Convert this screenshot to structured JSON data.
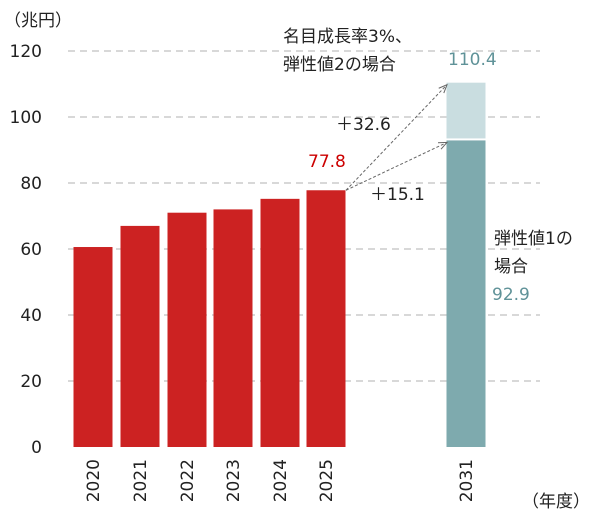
{
  "chart_data": {
    "type": "bar",
    "unit_label": "（兆円）",
    "xlabel": "（年度）",
    "ylim": [
      0,
      120
    ],
    "yticks": [
      0,
      20,
      40,
      60,
      80,
      100,
      120
    ],
    "grid": true,
    "categories": [
      "2020",
      "2021",
      "2022",
      "2023",
      "2024",
      "2025",
      "2031"
    ],
    "values": [
      60.6,
      67.0,
      71.0,
      72.0,
      75.2,
      77.8,
      null
    ],
    "data_labels": {
      "2025": "77.8"
    },
    "projection_2031": {
      "base": 92.9,
      "base_label": "92.9",
      "top": 110.4,
      "top_label": "110.4",
      "scenario_1": [
        "弾性値1の",
        "場合"
      ],
      "scenario_2": [
        "名目成長率3%、",
        "弾性値2の場合"
      ],
      "increase_1": "＋15.1",
      "increase_2": "＋32.6"
    },
    "colors": {
      "actual": "#cc2222",
      "base_2031": "#7eaaae",
      "top_2031": "#c9dde0",
      "label_red": "#cc0000",
      "label_teal": "#5f9298"
    }
  }
}
